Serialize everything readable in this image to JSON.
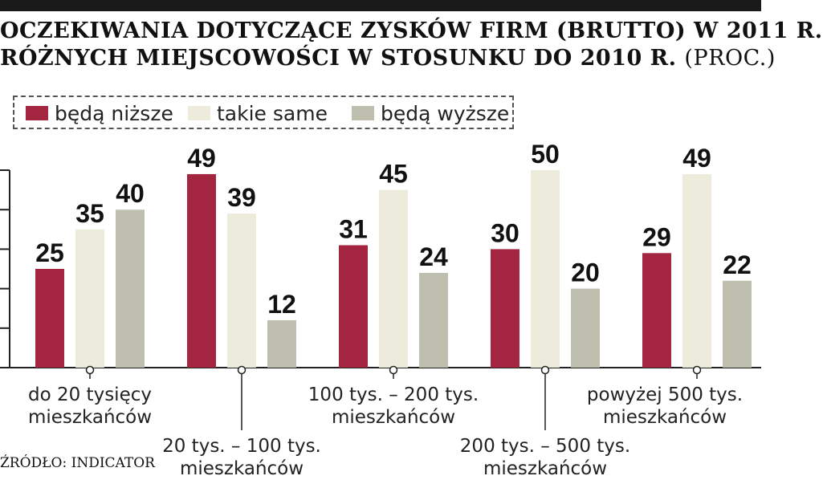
{
  "title": {
    "line1": "OCZEKIWANIA DOTYCZĄCE ZYSKÓW FIRM (BRUTTO) W 2011 R.",
    "line2": "RÓŻNYCH MIEJSCOWOŚCI W STOSUNKU DO 2010 R.",
    "unit": "(PROC.)"
  },
  "source": "ŹRÓDŁO: INDICATOR",
  "colors": {
    "lower": "#a3253f",
    "same": "#ecebdc",
    "higher": "#bfbfb0",
    "axis": "#222222"
  },
  "chart_data": {
    "type": "bar",
    "categories": [
      "do 20 tysięcy mieszkańców",
      "20 tys. – 100 tys. mieszkańców",
      "100 tys. – 200 tys. mieszkańców",
      "200 tys. – 500 tys. mieszkańców",
      "powyżej 500 tys. mieszkańców"
    ],
    "category_label_lines": [
      [
        "do 20 tysięcy",
        "mieszkańców"
      ],
      [
        "20 tys. – 100 tys.",
        "mieszkańców"
      ],
      [
        "100 tys. – 200 tys.",
        "mieszkańców"
      ],
      [
        "200 tys. – 500 tys.",
        "mieszkańców"
      ],
      [
        "powyżej 500 tys.",
        "mieszkańców"
      ]
    ],
    "series": [
      {
        "name": "będą niższe",
        "values": [
          25,
          49,
          31,
          30,
          29
        ]
      },
      {
        "name": "takie same",
        "values": [
          35,
          39,
          45,
          50,
          49
        ]
      },
      {
        "name": "będą wyższe",
        "values": [
          40,
          12,
          24,
          20,
          22
        ]
      }
    ],
    "ylim": [
      0,
      50
    ],
    "grid": false,
    "legend_position": "top-left"
  }
}
